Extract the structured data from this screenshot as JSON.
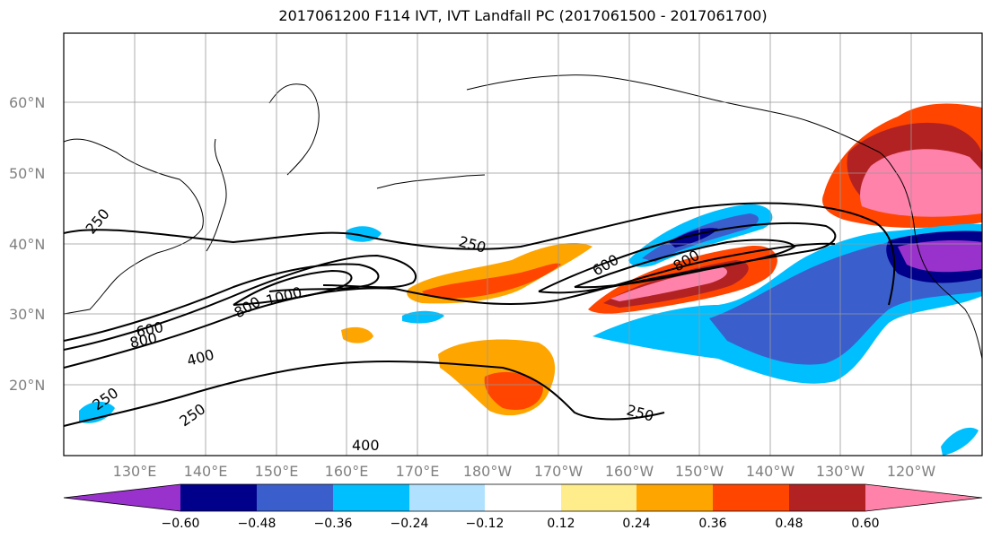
{
  "title": "2017061200 F114 IVT, IVT Landfall PC (2017061500 - 2017061700)",
  "latitude_labels": [
    "60°N",
    "50°N",
    "40°N",
    "30°N",
    "20°N"
  ],
  "longitude_labels": [
    "130°E",
    "140°E",
    "150°E",
    "160°E",
    "170°E",
    "180°W",
    "170°W",
    "160°W",
    "150°W",
    "140°W",
    "130°W",
    "120°W"
  ],
  "contour_labels": [
    "250",
    "250",
    "250",
    "250",
    "250",
    "400",
    "400",
    "600",
    "600",
    "800",
    "800",
    "800",
    "1000"
  ],
  "colorbar": {
    "colors": [
      "#9932cc",
      "#00008b",
      "#3a5fcd",
      "#00bfff",
      "#b0e2ff",
      "#ffffff",
      "#ffec8b",
      "#ffa500",
      "#ff4500",
      "#b22222",
      "#ff82ab"
    ],
    "tick_labels": [
      "−0.60",
      "−0.48",
      "−0.36",
      "−0.24",
      "−0.12",
      "0.12",
      "0.24",
      "0.36",
      "0.48",
      "0.60"
    ]
  }
}
